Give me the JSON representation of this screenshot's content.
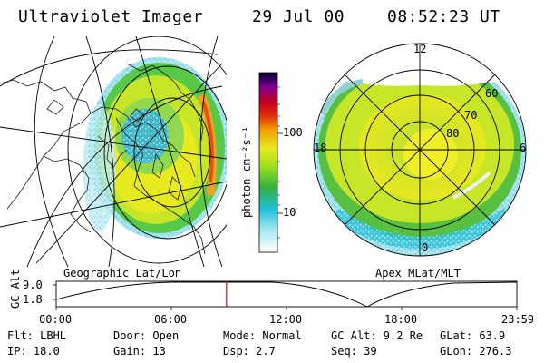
{
  "header": {
    "title": "Ultraviolet Imager",
    "date": "29 Jul 00",
    "time": "08:52:23 UT"
  },
  "left_panel": {
    "label": "Geographic Lat/Lon"
  },
  "right_panel": {
    "label": "Apex MLat/MLT",
    "mlt_labels": {
      "top": "12",
      "left": "18",
      "right": "6",
      "bottom": "0"
    },
    "mlat_labels": [
      "60",
      "70",
      "80"
    ]
  },
  "colorbar": {
    "unit_label": "photon cm⁻²s⁻¹",
    "ticks": [
      "100",
      "10"
    ],
    "scale": "log"
  },
  "timeline": {
    "y_label": "GC Alt",
    "y_ticks": [
      "9.0",
      "1.8"
    ],
    "x_ticks": [
      "00:00",
      "06:00",
      "12:00",
      "18:00",
      "23:59"
    ],
    "current_time_fraction": 0.3697,
    "marker_color": "#e00000"
  },
  "info": {
    "row1": [
      "Flt: LBHL",
      "Door: Open",
      "Mode: Normal",
      "GC Alt: 9.2 Re",
      "GLat:  63.9"
    ],
    "row2": [
      "IP: 18.0",
      "Gain: 13",
      "Dsp:    2.7",
      "Seq: 39",
      "GLon: 276.3"
    ]
  },
  "colors": {
    "auroral_low": "#30c8e0",
    "auroral_mid": "#a8e018",
    "auroral_high": "#f0e020",
    "auroral_peak": "#e05010"
  }
}
